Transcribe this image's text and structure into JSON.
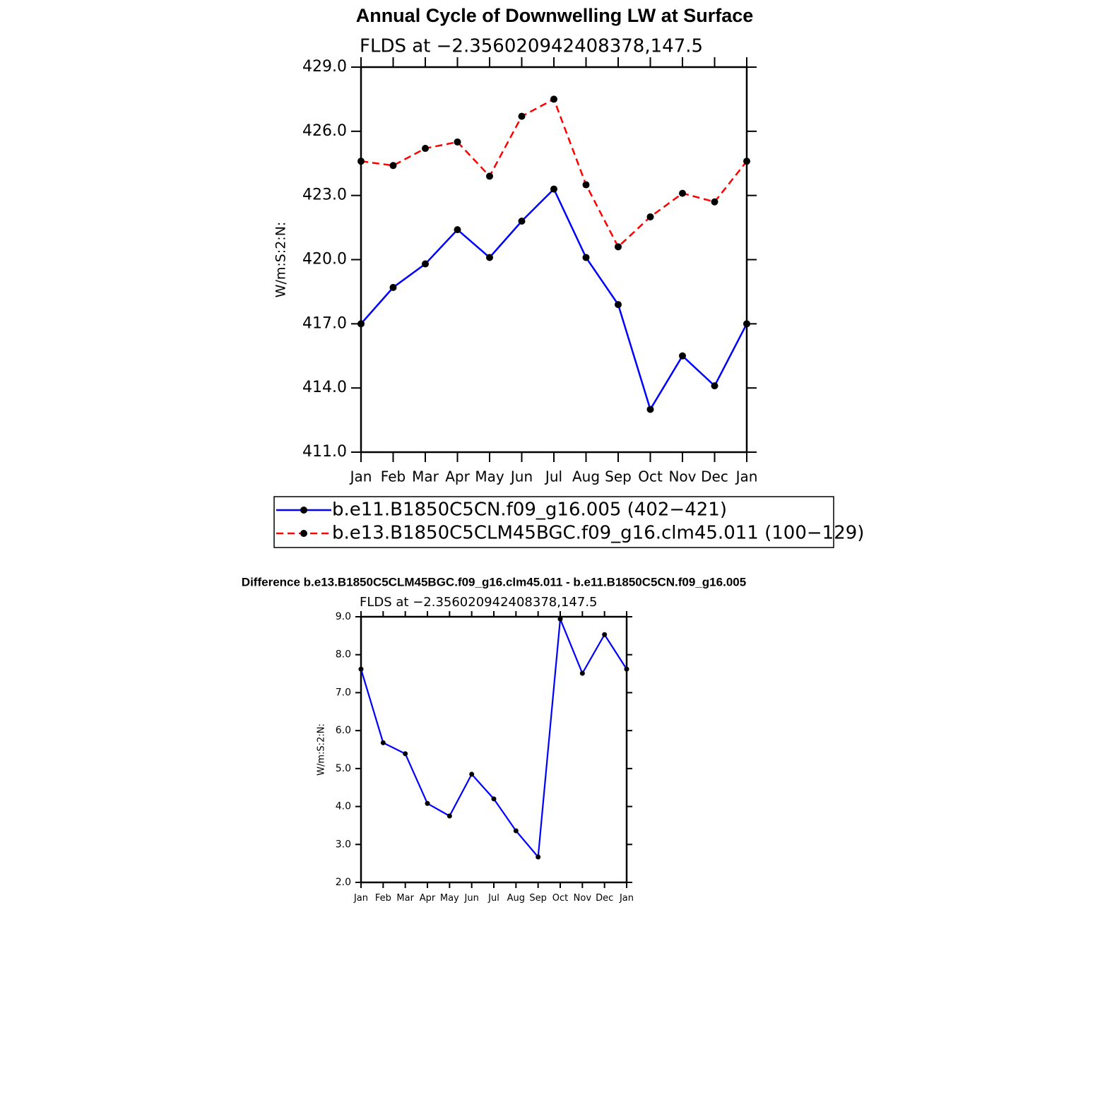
{
  "chart_data": [
    {
      "type": "line",
      "title": "Annual Cycle of Downwelling LW at Surface",
      "subtitle": "FLDS at −2.356020942408378,147.5",
      "y_label": "W/m:S:2:N:",
      "categories": [
        "Jan",
        "Feb",
        "Mar",
        "Apr",
        "May",
        "Jun",
        "Jul",
        "Aug",
        "Sep",
        "Oct",
        "Nov",
        "Dec",
        "Jan"
      ],
      "series": [
        {
          "name": "b.e11.B1850C5CN.f09_g16.005 (402−421)",
          "color": "#0000ff",
          "dash": "solid",
          "values": [
            417.0,
            418.7,
            419.8,
            421.4,
            420.1,
            421.8,
            423.3,
            420.1,
            417.9,
            413.0,
            415.5,
            414.1,
            417.0
          ]
        },
        {
          "name": "b.e13.B1850C5CLM45BGC.f09_g16.clm45.011 (100−129)",
          "color": "#ff0000",
          "dash": "dashed",
          "values": [
            424.6,
            424.4,
            425.2,
            425.5,
            423.9,
            426.7,
            427.5,
            423.5,
            420.6,
            422.0,
            423.1,
            422.7,
            424.6
          ]
        }
      ],
      "ylim": [
        411,
        429
      ],
      "yticks": [
        {
          "value": 411,
          "label": "411.0"
        },
        {
          "value": 414,
          "label": "414.0"
        },
        {
          "value": 417,
          "label": "417.0"
        },
        {
          "value": 420,
          "label": "420.0"
        },
        {
          "value": 423,
          "label": "423.0"
        },
        {
          "value": 426,
          "label": "426.0"
        },
        {
          "value": 429,
          "label": "429.0"
        }
      ],
      "markers": true,
      "legend": "bottom"
    },
    {
      "type": "line",
      "title": "Difference b.e13.B1850C5CLM45BGC.f09_g16.clm45.011 - b.e11.B1850C5CN.f09_g16.005",
      "subtitle": "FLDS at −2.356020942408378,147.5",
      "y_label": "W/m:S:2:N:",
      "categories": [
        "Jan",
        "Feb",
        "Mar",
        "Apr",
        "May",
        "Jun",
        "Jul",
        "Aug",
        "Sep",
        "Oct",
        "Nov",
        "Dec",
        "Jan"
      ],
      "color": "#0000ff",
      "values": [
        7.62,
        5.68,
        5.39,
        4.08,
        3.75,
        4.85,
        4.2,
        3.36,
        2.67,
        8.94,
        7.51,
        8.53,
        7.62
      ],
      "ylim": [
        2,
        9
      ],
      "yticks": [
        {
          "value": 2,
          "label": "2.0"
        },
        {
          "value": 3,
          "label": "3.0"
        },
        {
          "value": 4,
          "label": "4.0"
        },
        {
          "value": 5,
          "label": "5.0"
        },
        {
          "value": 6,
          "label": "6.0"
        },
        {
          "value": 7,
          "label": "7.0"
        },
        {
          "value": 8,
          "label": "8.0"
        },
        {
          "value": 9,
          "label": "9.0"
        }
      ],
      "markers": true
    }
  ]
}
